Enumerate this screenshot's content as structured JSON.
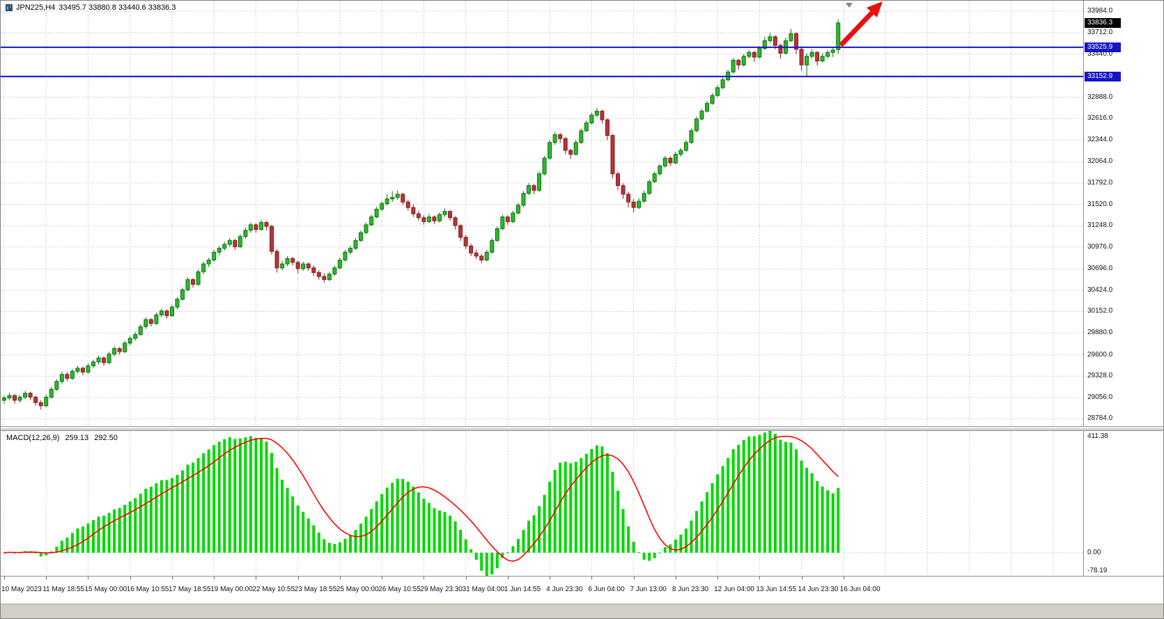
{
  "window": {
    "symbol_title": "JPN225,H4",
    "ohlc_text": "33495.7 33880.8 33440.6 33836.3"
  },
  "chart_data": [
    {
      "type": "candlestick",
      "title": "JPN225,H4",
      "timeframe": "H4",
      "open": 33495.7,
      "high": 33880.8,
      "low": 33440.6,
      "close": 33836.3,
      "ylim": [
        28690,
        34120
      ],
      "grid": true,
      "y_tick_labels": [
        "33984.0",
        "33712.0",
        "33440.0",
        "33168.0",
        "32888.0",
        "32616.0",
        "32344.0",
        "32064.0",
        "31792.0",
        "31520.0",
        "31248.0",
        "30976.0",
        "30696.0",
        "30424.0",
        "30152.0",
        "29880.0",
        "29600.0",
        "29328.0",
        "29056.0",
        "28784.0"
      ],
      "x_tick_labels": [
        "10 May 2023",
        "11 May 18:55",
        "15 May 00:00",
        "16 May 10:55",
        "17 May 18:55",
        "19 May 00:00",
        "22 May 10:55",
        "23 May 18:55",
        "25 May 00:00",
        "26 May 10:55",
        "29 May 23:30",
        "31 May 04:00",
        "1 Jun 14:55",
        "4 Jun 23:30",
        "6 Jun 04:00",
        "7 Jun 13:00",
        "8 Jun 23:30",
        "12 Jun 04:00",
        "13 Jun 14:55",
        "14 Jun 23:30",
        "16 Jun 04:00"
      ],
      "horizontal_lines": [
        {
          "value": 33525.9,
          "label": "33525.9",
          "color": "#1515C8"
        },
        {
          "value": 33152.9,
          "label": "33152.9",
          "color": "#1515C8"
        }
      ],
      "last_price_tag": {
        "value": 33836.3,
        "label": "33836.3",
        "color": "#000000"
      },
      "colors": {
        "bull_fill": "#2DB82D",
        "bull_border": "#0E6F0E",
        "bear_fill": "#B73535",
        "bear_border": "#7E1F1F",
        "grid": "#CFCFCF",
        "background": "#FFFFFF"
      },
      "candles": [
        [
          29020,
          29080,
          28980,
          29050
        ],
        [
          29050,
          29120,
          29020,
          29080
        ],
        [
          29080,
          29100,
          28980,
          29020
        ],
        [
          29020,
          29090,
          28990,
          29060
        ],
        [
          29060,
          29140,
          29030,
          29110
        ],
        [
          29110,
          29130,
          29020,
          29060
        ],
        [
          29060,
          29080,
          28950,
          28990
        ],
        [
          28990,
          29020,
          28900,
          28950
        ],
        [
          28950,
          29090,
          28930,
          29060
        ],
        [
          29060,
          29190,
          29040,
          29160
        ],
        [
          29160,
          29290,
          29140,
          29260
        ],
        [
          29260,
          29380,
          29230,
          29350
        ],
        [
          29350,
          29380,
          29260,
          29300
        ],
        [
          29300,
          29420,
          29280,
          29390
        ],
        [
          29390,
          29460,
          29360,
          29430
        ],
        [
          29430,
          29450,
          29340,
          29380
        ],
        [
          29380,
          29490,
          29360,
          29460
        ],
        [
          29460,
          29540,
          29430,
          29510
        ],
        [
          29510,
          29590,
          29480,
          29560
        ],
        [
          29560,
          29580,
          29460,
          29500
        ],
        [
          29500,
          29640,
          29480,
          29610
        ],
        [
          29610,
          29710,
          29580,
          29680
        ],
        [
          29680,
          29700,
          29600,
          29640
        ],
        [
          29640,
          29780,
          29620,
          29750
        ],
        [
          29750,
          29840,
          29720,
          29810
        ],
        [
          29810,
          29890,
          29780,
          29860
        ],
        [
          29860,
          29990,
          29840,
          29960
        ],
        [
          29960,
          30080,
          29930,
          30050
        ],
        [
          30050,
          30070,
          29960,
          30000
        ],
        [
          30000,
          30140,
          29980,
          30110
        ],
        [
          30110,
          30190,
          30080,
          30160
        ],
        [
          30160,
          30180,
          30060,
          30100
        ],
        [
          30100,
          30240,
          30080,
          30210
        ],
        [
          30210,
          30340,
          30180,
          30310
        ],
        [
          30310,
          30460,
          30290,
          30430
        ],
        [
          30430,
          30590,
          30410,
          30560
        ],
        [
          30560,
          30580,
          30460,
          30500
        ],
        [
          30500,
          30690,
          30480,
          30660
        ],
        [
          30660,
          30790,
          30630,
          30760
        ],
        [
          30760,
          30840,
          30720,
          30810
        ],
        [
          30810,
          30940,
          30790,
          30910
        ],
        [
          30910,
          30990,
          30870,
          30960
        ],
        [
          30960,
          31040,
          30930,
          31010
        ],
        [
          31010,
          31090,
          30980,
          31060
        ],
        [
          31060,
          31080,
          30940,
          30980
        ],
        [
          30980,
          31140,
          30960,
          31110
        ],
        [
          31110,
          31220,
          31080,
          31190
        ],
        [
          31190,
          31290,
          31160,
          31260
        ],
        [
          31260,
          31280,
          31160,
          31200
        ],
        [
          31200,
          31320,
          31180,
          31290
        ],
        [
          31290,
          31310,
          31190,
          31240
        ],
        [
          31240,
          31260,
          30880,
          30920
        ],
        [
          30920,
          30950,
          30650,
          30710
        ],
        [
          30710,
          30800,
          30680,
          30760
        ],
        [
          30760,
          30860,
          30730,
          30830
        ],
        [
          30830,
          30850,
          30740,
          30780
        ],
        [
          30780,
          30800,
          30640,
          30700
        ],
        [
          30700,
          30790,
          30670,
          30760
        ],
        [
          30760,
          30780,
          30670,
          30710
        ],
        [
          30710,
          30740,
          30610,
          30650
        ],
        [
          30650,
          30680,
          30560,
          30600
        ],
        [
          30600,
          30640,
          30520,
          30560
        ],
        [
          30560,
          30660,
          30540,
          30630
        ],
        [
          30630,
          30740,
          30610,
          30710
        ],
        [
          30710,
          30840,
          30690,
          30810
        ],
        [
          30810,
          30940,
          30790,
          30910
        ],
        [
          30910,
          30990,
          30880,
          30960
        ],
        [
          30960,
          31090,
          30940,
          31060
        ],
        [
          31060,
          31190,
          31040,
          31160
        ],
        [
          31160,
          31290,
          31140,
          31260
        ],
        [
          31260,
          31390,
          31240,
          31360
        ],
        [
          31360,
          31490,
          31340,
          31460
        ],
        [
          31460,
          31560,
          31430,
          31530
        ],
        [
          31530,
          31650,
          31500,
          31590
        ],
        [
          31590,
          31690,
          31550,
          31610
        ],
        [
          31610,
          31700,
          31580,
          31650
        ],
        [
          31650,
          31670,
          31510,
          31550
        ],
        [
          31550,
          31580,
          31440,
          31480
        ],
        [
          31480,
          31520,
          31360,
          31400
        ],
        [
          31400,
          31440,
          31310,
          31350
        ],
        [
          31350,
          31380,
          31260,
          31300
        ],
        [
          31300,
          31400,
          31280,
          31360
        ],
        [
          31360,
          31380,
          31270,
          31310
        ],
        [
          31310,
          31420,
          31290,
          31390
        ],
        [
          31390,
          31470,
          31360,
          31430
        ],
        [
          31430,
          31450,
          31310,
          31350
        ],
        [
          31350,
          31370,
          31200,
          31250
        ],
        [
          31250,
          31270,
          31050,
          31100
        ],
        [
          31100,
          31130,
          30950,
          30990
        ],
        [
          30990,
          31020,
          30860,
          30900
        ],
        [
          30900,
          30940,
          30820,
          30860
        ],
        [
          30860,
          30890,
          30770,
          30810
        ],
        [
          30810,
          30940,
          30790,
          30910
        ],
        [
          30910,
          31090,
          30890,
          31060
        ],
        [
          31060,
          31240,
          31040,
          31210
        ],
        [
          31210,
          31390,
          31190,
          31360
        ],
        [
          31360,
          31380,
          31260,
          31300
        ],
        [
          31300,
          31440,
          31280,
          31410
        ],
        [
          31410,
          31540,
          31390,
          31510
        ],
        [
          31510,
          31690,
          31490,
          31660
        ],
        [
          31660,
          31790,
          31640,
          31760
        ],
        [
          31760,
          31780,
          31650,
          31700
        ],
        [
          31700,
          31940,
          31680,
          31910
        ],
        [
          31910,
          32140,
          31890,
          32110
        ],
        [
          32110,
          32340,
          32090,
          32310
        ],
        [
          32310,
          32440,
          32280,
          32410
        ],
        [
          32410,
          32430,
          32300,
          32360
        ],
        [
          32360,
          32380,
          32160,
          32210
        ],
        [
          32210,
          32230,
          32100,
          32160
        ],
        [
          32160,
          32340,
          32140,
          32310
        ],
        [
          32310,
          32490,
          32290,
          32460
        ],
        [
          32460,
          32590,
          32440,
          32560
        ],
        [
          32560,
          32690,
          32540,
          32660
        ],
        [
          32660,
          32750,
          32630,
          32710
        ],
        [
          32710,
          32730,
          32550,
          32600
        ],
        [
          32600,
          32620,
          32340,
          32400
        ],
        [
          32400,
          32420,
          31850,
          31910
        ],
        [
          31910,
          31940,
          31700,
          31760
        ],
        [
          31760,
          31790,
          31590,
          31650
        ],
        [
          31650,
          31680,
          31480,
          31550
        ],
        [
          31550,
          31590,
          31420,
          31480
        ],
        [
          31480,
          31600,
          31460,
          31560
        ],
        [
          31560,
          31700,
          31540,
          31660
        ],
        [
          31660,
          31840,
          31640,
          31810
        ],
        [
          31810,
          31940,
          31790,
          31910
        ],
        [
          31910,
          32040,
          31890,
          32010
        ],
        [
          32010,
          32140,
          31990,
          32110
        ],
        [
          32110,
          32130,
          32010,
          32050
        ],
        [
          32050,
          32190,
          32030,
          32160
        ],
        [
          32160,
          32240,
          32130,
          32210
        ],
        [
          32210,
          32340,
          32190,
          32310
        ],
        [
          32310,
          32490,
          32290,
          32460
        ],
        [
          32460,
          32640,
          32440,
          32610
        ],
        [
          32610,
          32740,
          32590,
          32710
        ],
        [
          32710,
          32840,
          32690,
          32810
        ],
        [
          32810,
          32940,
          32790,
          32910
        ],
        [
          32910,
          33040,
          32890,
          33010
        ],
        [
          33010,
          33140,
          32990,
          33110
        ],
        [
          33110,
          33240,
          33090,
          33210
        ],
        [
          33210,
          33390,
          33190,
          33360
        ],
        [
          33360,
          33380,
          33240,
          33300
        ],
        [
          33300,
          33440,
          33280,
          33410
        ],
        [
          33410,
          33490,
          33380,
          33460
        ],
        [
          33460,
          33480,
          33340,
          33400
        ],
        [
          33400,
          33540,
          33380,
          33510
        ],
        [
          33510,
          33660,
          33490,
          33610
        ],
        [
          33610,
          33710,
          33580,
          33660
        ],
        [
          33660,
          33680,
          33500,
          33550
        ],
        [
          33550,
          33570,
          33380,
          33450
        ],
        [
          33450,
          33650,
          33430,
          33610
        ],
        [
          33610,
          33760,
          33590,
          33700
        ],
        [
          33700,
          33720,
          33440,
          33500
        ],
        [
          33500,
          33520,
          33230,
          33300
        ],
        [
          33300,
          33450,
          33160,
          33410
        ],
        [
          33410,
          33500,
          33380,
          33460
        ],
        [
          33460,
          33480,
          33290,
          33350
        ],
        [
          33350,
          33450,
          33330,
          33410
        ],
        [
          33410,
          33490,
          33380,
          33460
        ],
        [
          33460,
          33520,
          33400,
          33490
        ],
        [
          33495.7,
          33880.8,
          33440.6,
          33836.3
        ]
      ]
    },
    {
      "type": "bar+line",
      "title": "MACD(12,26,9)",
      "value_main": "259.13",
      "value_signal": "292.50",
      "params": {
        "fast": 12,
        "slow": 26,
        "signal": 9
      },
      "ylim": [
        -78.19,
        411.38
      ],
      "y_tick_labels": [
        "411.38",
        "0.00",
        "-78.19"
      ],
      "histogram_color": "#00D800",
      "signal_color": "#FF0000"
    }
  ],
  "annotations": {
    "arrow": {
      "color": "#E81010",
      "direction": "up-right"
    },
    "shift_marker_color": "#848484"
  }
}
